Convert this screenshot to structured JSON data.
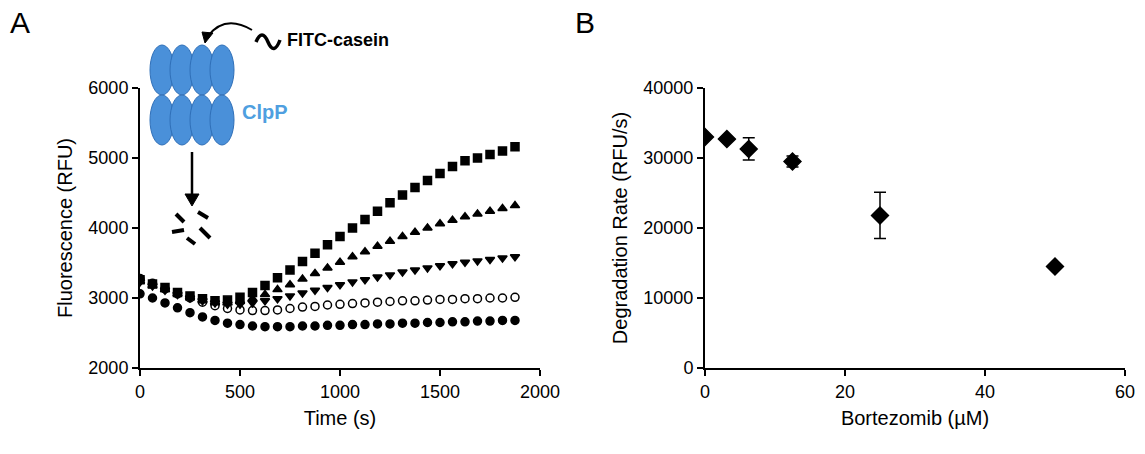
{
  "chart_data": [
    {
      "panel_label": "A",
      "type": "scatter",
      "x_label": "Time (s)",
      "y_label": "Fluorescence (RFU)",
      "x": [
        0,
        62.5,
        125,
        187.5,
        250,
        312.5,
        375,
        437.5,
        500,
        562.5,
        625,
        687.5,
        750,
        812.5,
        875,
        937.5,
        1000,
        1062.5,
        1125,
        1187.5,
        1250,
        1312.5,
        1375,
        1437.5,
        1500,
        1562.5,
        1625,
        1687.5,
        1750,
        1812.5,
        1875
      ],
      "series": [
        {
          "marker": "square",
          "color": "#000000",
          "values": [
            3260,
            3200,
            3150,
            3080,
            3030,
            2990,
            2960,
            2970,
            3010,
            3080,
            3180,
            3290,
            3400,
            3520,
            3640,
            3760,
            3880,
            4000,
            4120,
            4240,
            4360,
            4470,
            4580,
            4680,
            4780,
            4880,
            4960,
            5000,
            5050,
            5100,
            5160
          ]
        },
        {
          "marker": "triangle-up",
          "color": "#000000",
          "values": [
            3240,
            3180,
            3120,
            3060,
            3010,
            2970,
            2940,
            2930,
            2950,
            2990,
            3050,
            3120,
            3190,
            3270,
            3350,
            3430,
            3510,
            3590,
            3660,
            3740,
            3810,
            3880,
            3940,
            4000,
            4060,
            4110,
            4160,
            4200,
            4240,
            4280,
            4320
          ]
        },
        {
          "marker": "triangle-down",
          "color": "#000000",
          "values": [
            3230,
            3170,
            3110,
            3050,
            3000,
            2960,
            2930,
            2910,
            2910,
            2930,
            2960,
            2990,
            3030,
            3070,
            3110,
            3150,
            3190,
            3230,
            3260,
            3300,
            3330,
            3370,
            3400,
            3430,
            3460,
            3490,
            3510,
            3530,
            3550,
            3570,
            3590
          ]
        },
        {
          "marker": "circle-open",
          "color": "#000000",
          "values": [
            3280,
            3210,
            3130,
            3060,
            3000,
            2940,
            2890,
            2850,
            2830,
            2820,
            2820,
            2830,
            2850,
            2870,
            2880,
            2900,
            2910,
            2920,
            2930,
            2940,
            2950,
            2960,
            2960,
            2970,
            2980,
            2980,
            2990,
            2990,
            3000,
            3000,
            3010
          ]
        },
        {
          "marker": "circle",
          "color": "#000000",
          "values": [
            3060,
            3000,
            2930,
            2860,
            2790,
            2730,
            2680,
            2640,
            2620,
            2600,
            2590,
            2590,
            2590,
            2600,
            2600,
            2610,
            2610,
            2620,
            2620,
            2630,
            2630,
            2640,
            2640,
            2650,
            2650,
            2660,
            2660,
            2670,
            2670,
            2680,
            2680
          ]
        }
      ],
      "xlim": [
        0,
        2000
      ],
      "xticks": [
        0,
        500,
        1000,
        1500,
        2000
      ],
      "ylim": [
        2000,
        6000
      ],
      "yticks": [
        2000,
        3000,
        4000,
        5000,
        6000
      ],
      "grid": false,
      "annotations": [
        {
          "text": "FITC-casein",
          "color": "#000000"
        },
        {
          "text": "ClpP",
          "color": "#4f9fe0"
        }
      ]
    },
    {
      "panel_label": "B",
      "type": "scatter",
      "x_label": "Bortezomib (µM)",
      "y_label": "Degradation Rate (RFU/s)",
      "x": [
        0,
        3.125,
        6.25,
        12.5,
        25,
        50
      ],
      "values": [
        33000,
        32700,
        31300,
        29500,
        21800,
        14500
      ],
      "errors": [
        0,
        0,
        1600,
        800,
        3300,
        0
      ],
      "marker": "diamond",
      "color": "#000000",
      "xlim": [
        0,
        60
      ],
      "xticks": [
        0,
        20,
        40,
        60
      ],
      "ylim": [
        0,
        40000
      ],
      "yticks": [
        0,
        10000,
        20000,
        30000,
        40000
      ],
      "grid": false
    }
  ]
}
